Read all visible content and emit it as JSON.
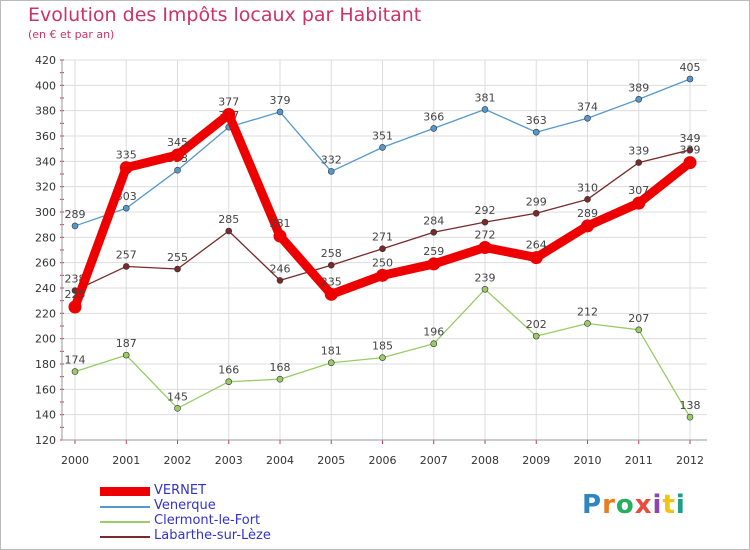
{
  "chart_data": {
    "type": "line",
    "title": "Evolution des Impôts locaux par Habitant",
    "subtitle": "(en € et par an)",
    "x": [
      "2000",
      "2001",
      "2002",
      "2003",
      "2004",
      "2005",
      "2006",
      "2007",
      "2008",
      "2009",
      "2010",
      "2011",
      "2012"
    ],
    "ylim": [
      120,
      420
    ],
    "yticks": [
      120,
      140,
      160,
      180,
      200,
      220,
      240,
      260,
      280,
      300,
      320,
      340,
      360,
      380,
      400,
      420
    ],
    "grid": true,
    "legend_position": "bottom-left",
    "series": [
      {
        "name": "VERNET",
        "color": "#ee0000",
        "values": [
          225,
          335,
          345,
          377,
          281,
          235,
          250,
          259,
          272,
          264,
          289,
          307,
          339
        ]
      },
      {
        "name": "Venerque",
        "color": "#5599cc",
        "values": [
          289,
          303,
          333,
          367,
          379,
          332,
          351,
          366,
          381,
          363,
          374,
          389,
          405
        ]
      },
      {
        "name": "Clermont-le-Fort",
        "color": "#99cc66",
        "values": [
          174,
          187,
          145,
          166,
          168,
          181,
          185,
          196,
          239,
          202,
          212,
          207,
          138
        ]
      },
      {
        "name": "Labarthe-sur-Lèze",
        "color": "#7a2a2a",
        "values": [
          238,
          257,
          255,
          285,
          246,
          258,
          271,
          284,
          292,
          299,
          310,
          339,
          349
        ]
      }
    ]
  },
  "logo": {
    "text": "Proxiti",
    "colors": [
      "#2e86c1",
      "#e67e22",
      "#27ae60",
      "#e74c3c",
      "#8e44ad",
      "#f1c40f",
      "#16a085"
    ]
  }
}
